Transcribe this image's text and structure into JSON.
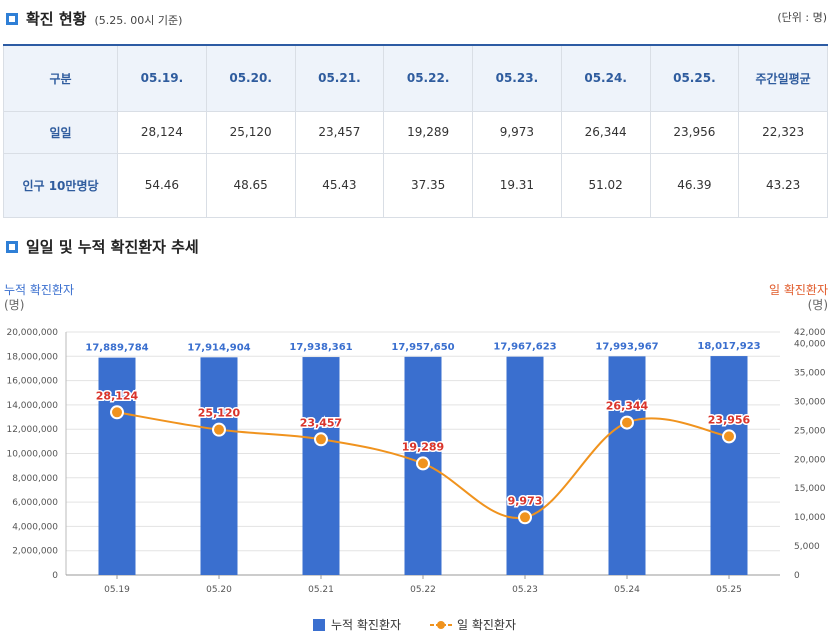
{
  "status": {
    "title": "확진 현황",
    "subtitle": "(5.25. 00시 기준)",
    "unit": "(단위 : 명)"
  },
  "table": {
    "corner_label": "구분",
    "columns": [
      "05.19.",
      "05.20.",
      "05.21.",
      "05.22.",
      "05.23.",
      "05.24.",
      "05.25.",
      "주간일평균"
    ],
    "rows": [
      {
        "label": "일일",
        "values": [
          "28,124",
          "25,120",
          "23,457",
          "19,289",
          "9,973",
          "26,344",
          "23,956",
          "22,323"
        ]
      },
      {
        "label": "인구 10만명당",
        "values": [
          "54.46",
          "48.65",
          "45.43",
          "37.35",
          "19.31",
          "51.02",
          "46.39",
          "43.23"
        ]
      }
    ]
  },
  "trend": {
    "title": "일일 및 누적 확진환자 추세"
  },
  "chart_data": {
    "type": "bar",
    "categories": [
      "05.19",
      "05.20",
      "05.21",
      "05.22",
      "05.23",
      "05.24",
      "05.25"
    ],
    "series": [
      {
        "name": "누적 확진환자",
        "kind": "bar",
        "axis": "left",
        "color": "#3a6fcf",
        "values": [
          17889784,
          17914904,
          17938361,
          17957650,
          17967623,
          17993967,
          18017923
        ],
        "labels": [
          "17,889,784",
          "17,914,904",
          "17,938,361",
          "17,957,650",
          "17,967,623",
          "17,993,967",
          "18,017,923"
        ]
      },
      {
        "name": "일 확진환자",
        "kind": "line",
        "axis": "right",
        "color": "#f0931e",
        "values": [
          28124,
          25120,
          23457,
          19289,
          9973,
          26344,
          23956
        ],
        "labels": [
          "28,124",
          "25,120",
          "23,457",
          "19,289",
          "9,973",
          "26,344",
          "23,956"
        ]
      }
    ],
    "left_axis": {
      "label_line1": "누적 확진환자",
      "label_line2": "(명)",
      "ylim": [
        0,
        20000000
      ],
      "ticks": [
        "0",
        "2,000,000",
        "4,000,000",
        "6,000,000",
        "8,000,000",
        "10,000,000",
        "12,000,000",
        "14,000,000",
        "16,000,000",
        "18,000,000",
        "20,000,000"
      ]
    },
    "right_axis": {
      "label_line1": "일 확진환자",
      "label_line2": "(명)",
      "ylim": [
        0,
        42000
      ],
      "ticks": [
        "0",
        "5,000",
        "10,000",
        "15,000",
        "20,000",
        "25,000",
        "30,000",
        "35,000",
        "40,000",
        "42,000"
      ]
    },
    "legend_position": "bottom-center",
    "grid": true
  }
}
